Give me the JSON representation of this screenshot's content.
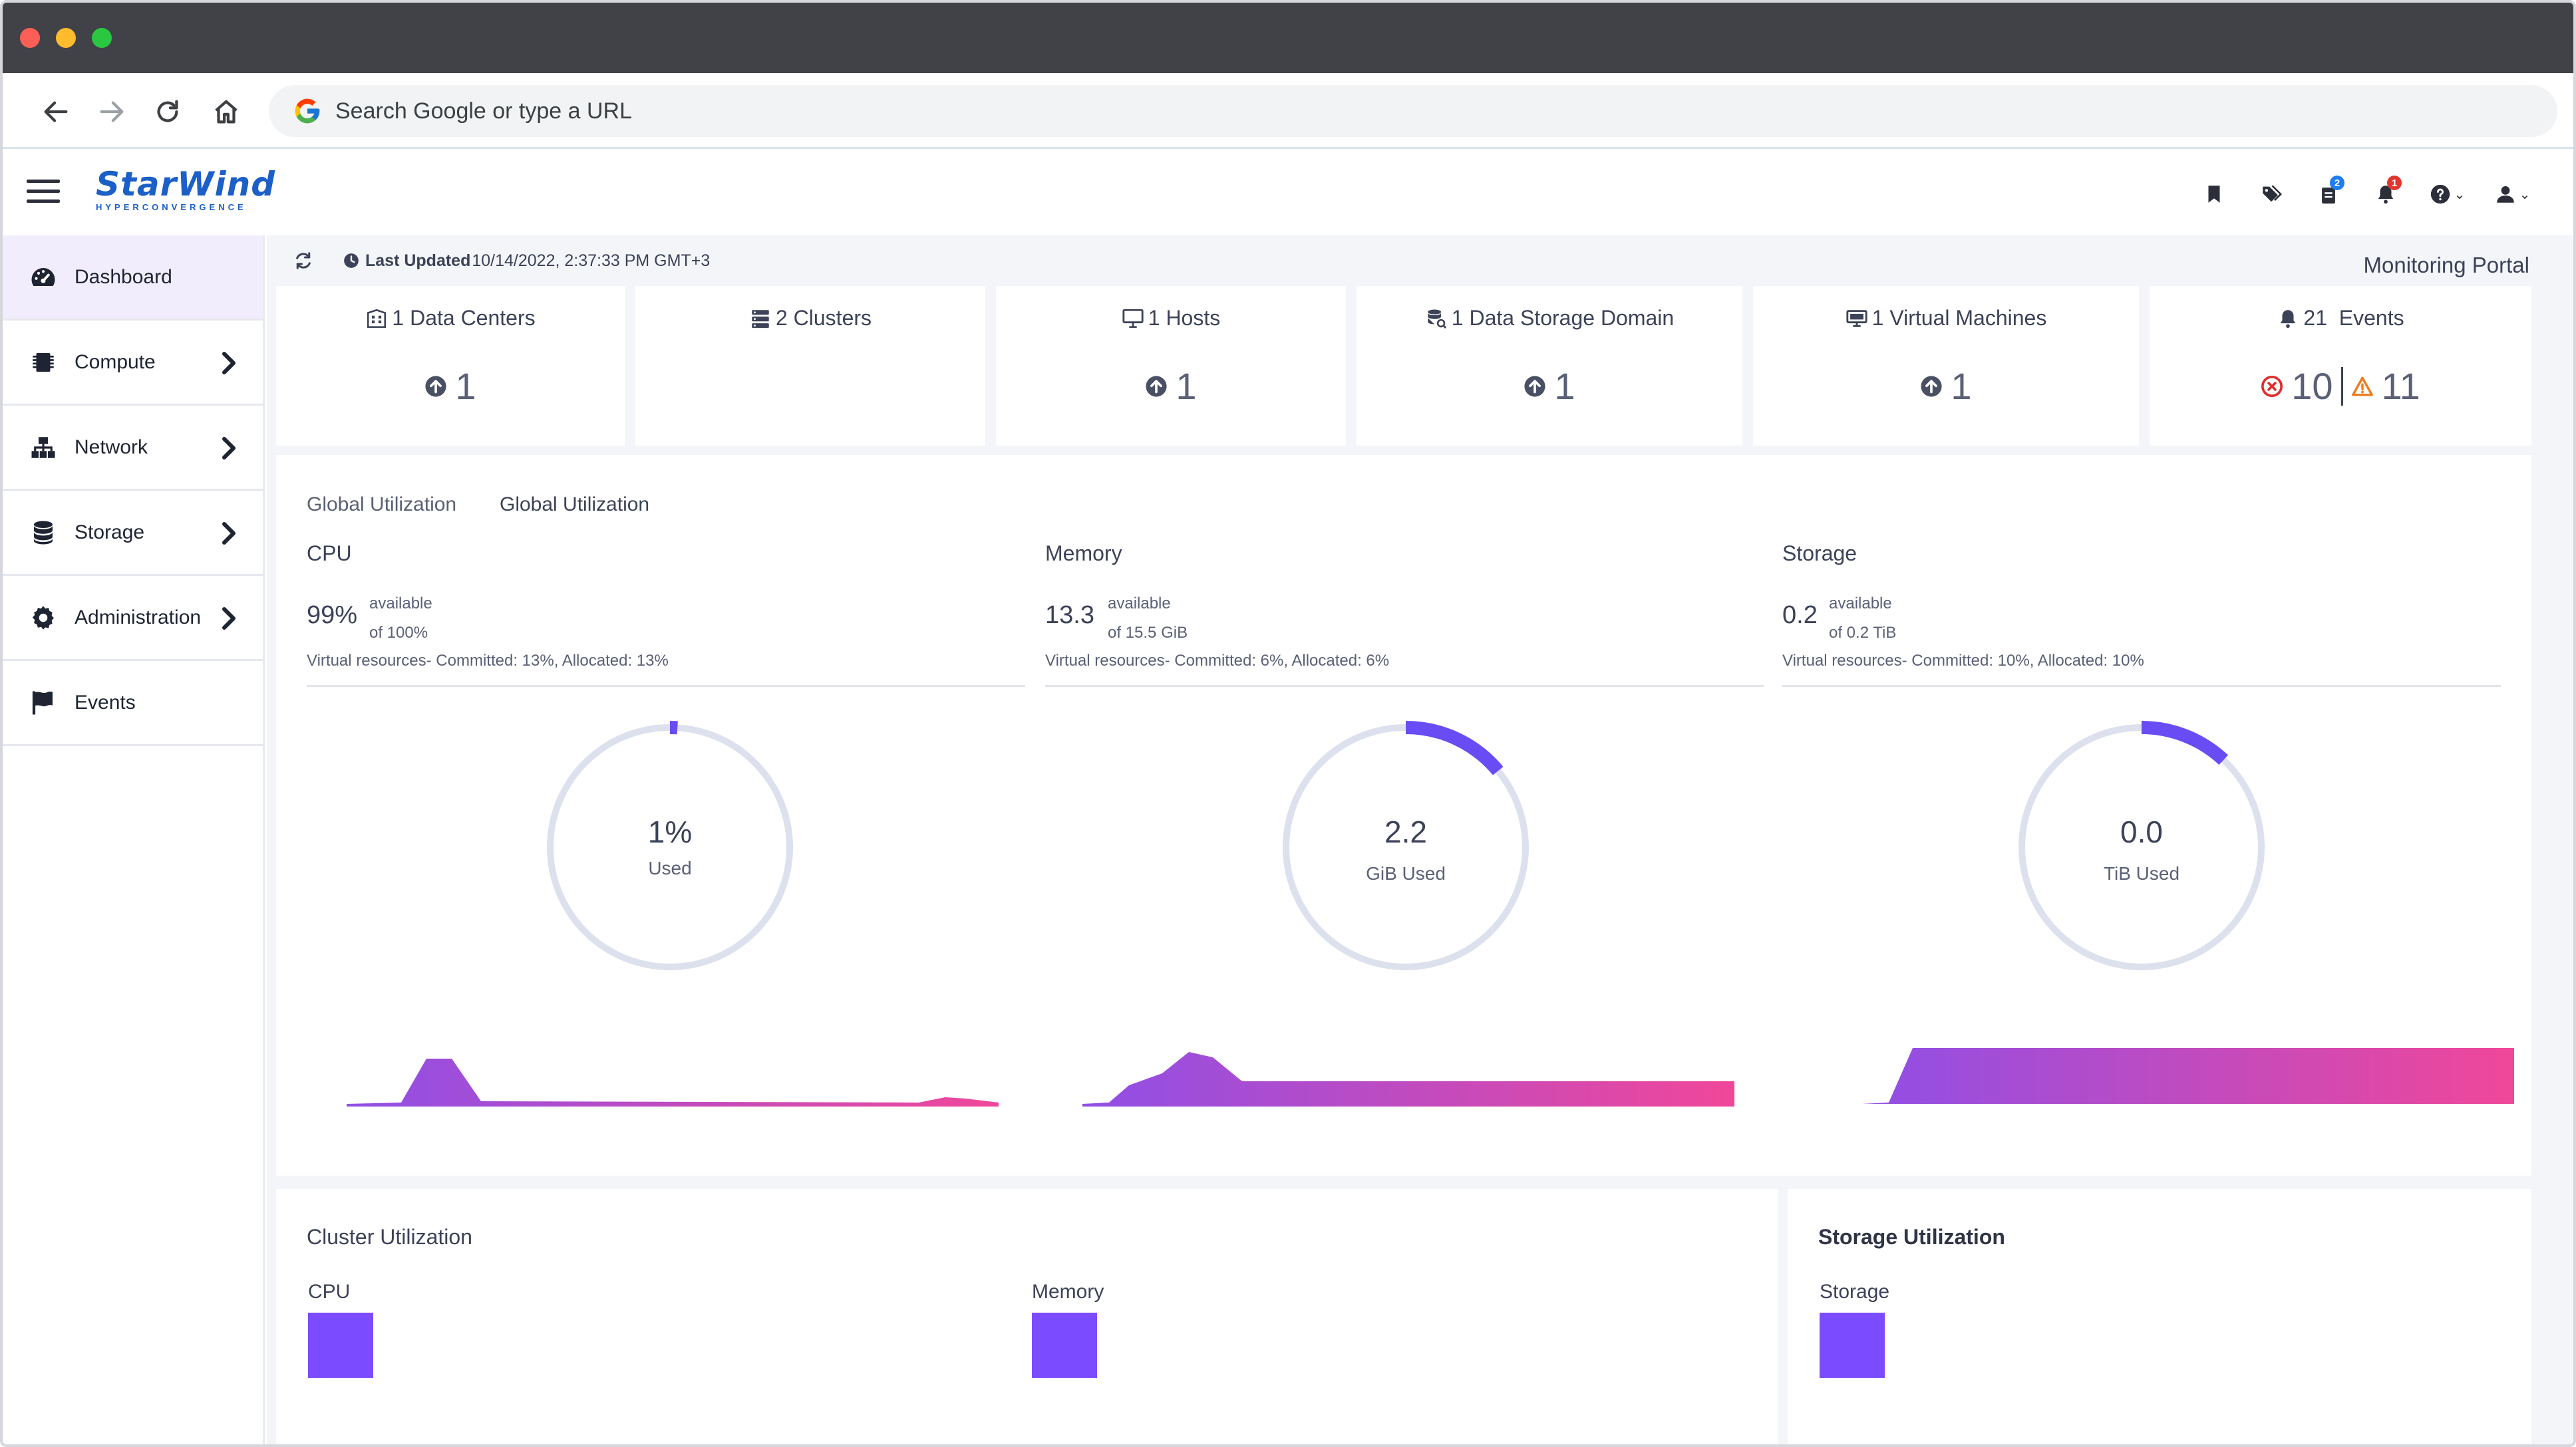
{
  "browser": {
    "url_placeholder": "Search Google or type a URL"
  },
  "app": {
    "brand_name": "StarWind",
    "brand_subtitle": "HYPERCONVERGENCE",
    "header_icons": [
      {
        "icon": "bookmark-icon"
      },
      {
        "icon": "tags-icon"
      },
      {
        "icon": "tasks-icon",
        "badge": "2"
      },
      {
        "icon": "bell-icon",
        "badge": "1"
      },
      {
        "icon": "help-icon"
      },
      {
        "icon": "user-icon"
      }
    ]
  },
  "sidebar": {
    "items": [
      {
        "label": "Dashboard",
        "icon": "dashboard-gauge-icon",
        "active": true
      },
      {
        "label": "Compute",
        "icon": "chip-icon"
      },
      {
        "label": "Network",
        "icon": "network-icon"
      },
      {
        "label": "Storage",
        "icon": "database-icon"
      },
      {
        "label": "Administration",
        "icon": "gear-icon"
      },
      {
        "label": "Events",
        "icon": "flag-icon"
      }
    ]
  },
  "status": {
    "last_updated_label": "Last Updated",
    "last_updated_value": "10/14/2022, 2:37:33 PM GMT+3",
    "portal_title": "Monitoring Portal"
  },
  "cards": [
    {
      "title": "1 Data Centers",
      "value": "1"
    },
    {
      "title": "2 Clusters",
      "value": ""
    },
    {
      "title": "1 Hosts",
      "value": "1"
    },
    {
      "title": "1 Data Storage Domain",
      "value": "1"
    },
    {
      "title": "1 Virtual Machines",
      "value": "1"
    },
    {
      "title": "21  Events",
      "errors": "10",
      "warnings": "11"
    }
  ],
  "global_util": {
    "tab1": "Global Utilization",
    "tab2": "Global Utilization",
    "columns": [
      {
        "name": "CPU",
        "big": "99%",
        "avail_label": "available",
        "avail_of": "of 100%",
        "virtual": "Virtual resources- Committed: 13%, Allocated: 13%",
        "used_value": "1%",
        "used_unit": "Used",
        "used_fraction": 0.01
      },
      {
        "name": "Memory",
        "big": "13.3",
        "avail_label": "available",
        "avail_of": "of 15.5 GiB",
        "virtual": "Virtual resources- Committed: 6%, Allocated: 6%",
        "used_value": "2.2",
        "used_unit": "GiB Used",
        "used_fraction": 0.14
      },
      {
        "name": "Storage",
        "big": "0.2",
        "avail_label": "available",
        "avail_of": "of 0.2 TiB",
        "virtual": "Virtual resources- Committed: 10%, Allocated: 10%",
        "used_value": "0.0",
        "used_unit": "TiB Used",
        "used_fraction": 0.12
      }
    ],
    "colors": {
      "ring_track": "#dde1ee",
      "ring_fill": "#6a4cf5",
      "spark_start": "#8f4fe6",
      "spark_end": "#f04799"
    }
  },
  "cluster_util": {
    "title": "Cluster Utilization",
    "cpu_label": "CPU",
    "memory_label": "Memory"
  },
  "storage_util": {
    "title": "Storage Utilization",
    "storage_label": "Storage"
  }
}
